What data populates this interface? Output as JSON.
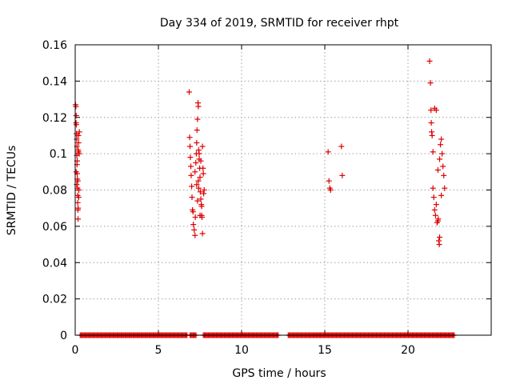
{
  "chart_data": {
    "type": "scatter",
    "title": "Day 334 of 2019, SRMTID for receiver rhpt",
    "xlabel": "GPS time / hours",
    "ylabel": "SRMTID / TECUs",
    "xlim": [
      0,
      25
    ],
    "ylim": [
      0,
      0.16
    ],
    "xticks": [
      0,
      5,
      10,
      15,
      20
    ],
    "yticks": [
      0,
      0.02,
      0.04,
      0.06,
      0.08,
      0.1,
      0.12,
      0.14,
      0.16
    ],
    "xtick_labels": [
      "0",
      "5",
      "10",
      "15",
      "20"
    ],
    "ytick_labels": [
      "0",
      "0.02",
      "0.04",
      "0.06",
      "0.08",
      "0.1",
      "0.12",
      "0.14",
      "0.16"
    ],
    "grid": true,
    "marker": "plus",
    "color": "#dd0000",
    "series": [
      {
        "x": [
          0.02,
          0.04,
          0.05,
          0.06,
          0.07,
          0.08,
          0.09,
          0.1,
          0.1,
          0.11,
          0.12,
          0.13,
          0.14,
          0.15,
          0.15,
          0.16,
          0.17,
          0.18,
          0.19,
          0.2,
          0.21,
          0.22,
          0.24,
          0.25,
          0.06,
          0.09,
          0.12,
          0.16,
          0.18,
          0.2,
          6.85,
          6.88,
          6.9,
          6.92,
          6.95,
          6.97,
          7.0,
          7.02,
          7.05,
          7.08,
          7.1,
          7.15,
          7.2,
          7.22,
          7.25,
          7.28,
          7.3,
          7.32,
          7.35,
          7.38,
          7.4,
          7.42,
          7.45,
          7.48,
          7.5,
          7.52,
          7.55,
          7.58,
          7.6,
          7.62,
          7.65,
          7.68,
          7.7,
          7.72,
          7.75,
          7.3,
          7.4,
          7.5,
          7.6,
          7.2,
          7.45,
          7.55,
          7.65,
          7.35,
          7.42,
          15.2,
          15.25,
          15.3,
          15.35,
          16.0,
          16.05,
          21.3,
          21.35,
          21.38,
          21.4,
          21.42,
          21.45,
          21.5,
          21.55,
          21.6,
          21.65,
          21.7,
          21.75,
          21.8,
          21.82,
          21.85,
          21.88,
          21.9,
          21.95,
          22.0,
          22.05,
          22.1,
          22.15,
          22.2,
          21.5,
          21.6,
          21.7,
          21.8,
          21.9,
          22.0
        ],
        "y": [
          0.127,
          0.126,
          0.117,
          0.121,
          0.116,
          0.111,
          0.108,
          0.104,
          0.099,
          0.094,
          0.089,
          0.086,
          0.081,
          0.077,
          0.073,
          0.069,
          0.064,
          0.102,
          0.11,
          0.106,
          0.076,
          0.08,
          0.1,
          0.112,
          0.09,
          0.083,
          0.096,
          0.085,
          0.07,
          0.101,
          0.134,
          0.109,
          0.104,
          0.098,
          0.093,
          0.088,
          0.082,
          0.076,
          0.069,
          0.068,
          0.061,
          0.058,
          0.055,
          0.065,
          0.095,
          0.1,
          0.106,
          0.113,
          0.119,
          0.128,
          0.126,
          0.102,
          0.097,
          0.092,
          0.087,
          0.079,
          0.075,
          0.072,
          0.066,
          0.065,
          0.056,
          0.092,
          0.089,
          0.078,
          0.08,
          0.083,
          0.085,
          0.066,
          0.071,
          0.09,
          0.1,
          0.096,
          0.104,
          0.074,
          0.081,
          0.101,
          0.085,
          0.081,
          0.08,
          0.104,
          0.088,
          0.151,
          0.139,
          0.124,
          0.117,
          0.112,
          0.11,
          0.081,
          0.076,
          0.069,
          0.066,
          0.072,
          0.062,
          0.063,
          0.064,
          0.052,
          0.05,
          0.054,
          0.105,
          0.108,
          0.1,
          0.093,
          0.088,
          0.081,
          0.101,
          0.125,
          0.124,
          0.091,
          0.097,
          0.077
        ],
        "zero_band": [
          [
            0.3,
            6.75
          ],
          [
            6.9,
            7.3
          ],
          [
            7.7,
            12.2
          ],
          [
            12.8,
            14.5
          ],
          [
            14.5,
            22.8
          ]
        ]
      }
    ]
  }
}
